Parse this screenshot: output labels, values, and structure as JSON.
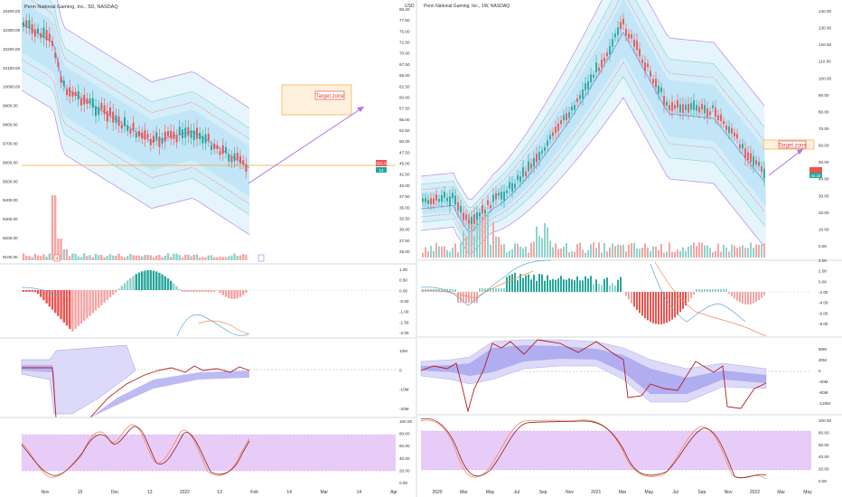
{
  "colors": {
    "up": "#26a69a",
    "down": "#ef5350",
    "vol_up": "#8fd3cb",
    "vol_down": "#f5a5a3",
    "band_fill": "#d8f0fb",
    "band_mid": "#7e8fd8",
    "band_outer": "#b48be6",
    "band_dotted": "#e06a6a",
    "price_line": "#f2a93b",
    "target_fill": "#fff1dc",
    "target_border": "#f2b35a",
    "target_label": "#e53935",
    "arrow": "#b36ee6",
    "stoch_band": "#e8ccf8",
    "stoch_border": "#c8a0ee",
    "osc_fill": "#c8c6f5",
    "osc_line": "#b71c1c",
    "axis_text": "#333333",
    "grid": "#e6e6e6"
  },
  "left_panel": {
    "title": "Penn National Gaming, Inc., 5D, NASDAQ",
    "price_axis": [
      "10400.00",
      "10300.00",
      "10200.00",
      "10100.00",
      "10000.00",
      "9900.00",
      "9800.00",
      "9700.00",
      "9600.00",
      "9500.00",
      "9400.00",
      "9300.00",
      "9200.00",
      "9100.00"
    ],
    "macd_axis": [
      "1.00",
      "0.50",
      "0.00",
      "-0.50",
      "-1.00",
      "-1.50",
      "-2.00"
    ],
    "osc_axis": [
      "10M",
      "0",
      "-10M",
      "-20M"
    ],
    "stoch_axis": [
      "100.00",
      "80.00",
      "60.00",
      "40.00",
      "20.00",
      "0.00"
    ],
    "time_axis": [
      "Nov",
      "15",
      "Dec",
      "13",
      "2022",
      "13",
      "Feb",
      "14",
      "Mar",
      "14",
      "Apr"
    ],
    "price_tag_value": "9565.00",
    "price_tag_small": "14",
    "target_label": "Target zone",
    "flag_label": "4",
    "chart_data": {
      "type": "candlestick",
      "title": "Penn National Gaming, Inc., 5D, NASDAQ",
      "ylim": [
        9050,
        10450
      ],
      "current_price": 9565,
      "target_zone": [
        9840,
        9930
      ],
      "volume_spike_at": "late Oct / early Nov",
      "macd_range": [
        -2.1,
        1.2
      ],
      "oscillator_range": [
        "-22M",
        "12M"
      ],
      "stochastic_band": [
        20,
        80
      ]
    }
  },
  "right_panel": {
    "title": "Penn National Gaming, Inc., 1W, NASDAQ",
    "currency": "USD",
    "left_axis": [
      "80.00",
      "77.50",
      "75.00",
      "72.50",
      "70.00",
      "67.50",
      "65.00",
      "62.50",
      "60.00",
      "57.50",
      "55.00",
      "52.50",
      "50.00",
      "47.50",
      "45.00",
      "42.50",
      "40.00",
      "37.50",
      "35.00",
      "32.50",
      "30.00",
      "27.50",
      "25.00"
    ],
    "price_axis": [
      "140.00",
      "130.00",
      "120.00",
      "110.00",
      "100.00",
      "90.00",
      "80.00",
      "70.00",
      "60.00",
      "50.00",
      "40.00",
      "30.00",
      "20.00",
      "10.00",
      "0.00"
    ],
    "macd_axis": [
      "4.00",
      "2.00",
      "0.00",
      "-2.00",
      "-4.00",
      "-6.00",
      "-8.00"
    ],
    "osc_axis": [
      "80M",
      "40M",
      "0",
      "-40M",
      "-80M",
      "-120M"
    ],
    "stoch_axis": [
      "100.00",
      "80.00",
      "60.00",
      "40.00",
      "20.00",
      "0.00"
    ],
    "time_axis": [
      "2020",
      "Mar",
      "May",
      "Jul",
      "Sep",
      "Nov",
      "2021",
      "Mar",
      "May",
      "Jul",
      "Sep",
      "Nov",
      "2022",
      "Mar",
      "May"
    ],
    "price_tag_value": "44.22",
    "target_label": "Target zone",
    "chart_data": {
      "type": "candlestick",
      "title": "Penn National Gaming, Inc., 1W, NASDAQ",
      "ylim": [
        0,
        145
      ],
      "current_price": 44.22,
      "peak_price": 142,
      "peak_date": "Mar 2021",
      "low_price": 5,
      "low_date": "Mar 2020",
      "target_zone": [
        54,
        60
      ],
      "stochastic_band": [
        20,
        80
      ]
    }
  }
}
